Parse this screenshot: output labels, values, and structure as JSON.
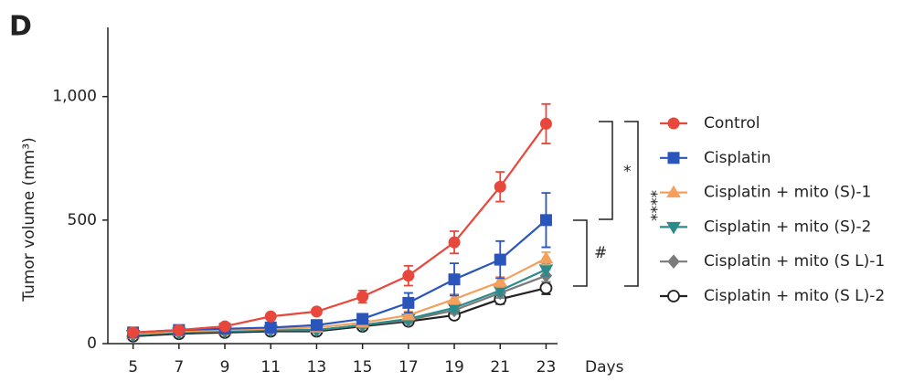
{
  "chart_data": {
    "type": "line",
    "panel_label": "D",
    "y_label": "Tumor volume (mm³)",
    "x_label": "Days",
    "x": [
      5,
      7,
      9,
      11,
      13,
      15,
      17,
      19,
      21,
      23
    ],
    "xlim": [
      3.9,
      23.5
    ],
    "xticks": [
      5,
      7,
      9,
      11,
      13,
      15,
      17,
      19,
      21,
      23
    ],
    "ylim": [
      0,
      1280
    ],
    "yticks": [
      0,
      500,
      {
        "value": 1000,
        "label": "1,000"
      }
    ],
    "series": [
      {
        "name": "Control",
        "color": "#e8473c",
        "marker": "circle",
        "values": [
          45,
          55,
          70,
          110,
          130,
          190,
          275,
          410,
          635,
          890
        ],
        "errors": [
          10,
          10,
          10,
          12,
          12,
          25,
          40,
          45,
          60,
          80
        ]
      },
      {
        "name": "Cisplatin",
        "color": "#2a55bb",
        "marker": "square",
        "values": [
          45,
          55,
          60,
          65,
          75,
          100,
          165,
          260,
          340,
          500
        ],
        "errors": [
          10,
          10,
          10,
          10,
          15,
          20,
          40,
          65,
          75,
          110
        ]
      },
      {
        "name": "Cisplatin + mito (S)-1",
        "color": "#f4a05c",
        "marker": "triangle-up",
        "values": [
          40,
          50,
          55,
          60,
          65,
          85,
          115,
          180,
          250,
          345
        ],
        "errors": [
          8,
          8,
          8,
          8,
          10,
          10,
          15,
          20,
          20,
          25
        ]
      },
      {
        "name": "Cisplatin + mito (S)-2",
        "color": "#2b8a8c",
        "marker": "triangle-down",
        "values": [
          35,
          45,
          50,
          55,
          55,
          75,
          100,
          145,
          215,
          300
        ],
        "errors": [
          8,
          8,
          8,
          8,
          8,
          10,
          12,
          15,
          20,
          25
        ]
      },
      {
        "name": "Cisplatin + mito (S L)-1",
        "color": "#7a7a7a",
        "marker": "diamond",
        "values": [
          35,
          45,
          50,
          55,
          55,
          75,
          95,
          135,
          205,
          275
        ],
        "errors": [
          8,
          8,
          8,
          8,
          8,
          10,
          12,
          15,
          20,
          25
        ]
      },
      {
        "name": "Cisplatin + mito (S L)-2",
        "color": "#222222",
        "marker": "open-circle",
        "values": [
          30,
          40,
          45,
          50,
          50,
          70,
          90,
          115,
          180,
          225
        ],
        "errors": [
          8,
          8,
          8,
          8,
          8,
          10,
          12,
          15,
          20,
          25
        ]
      }
    ],
    "annotations": [
      "*",
      "****",
      "#"
    ]
  }
}
